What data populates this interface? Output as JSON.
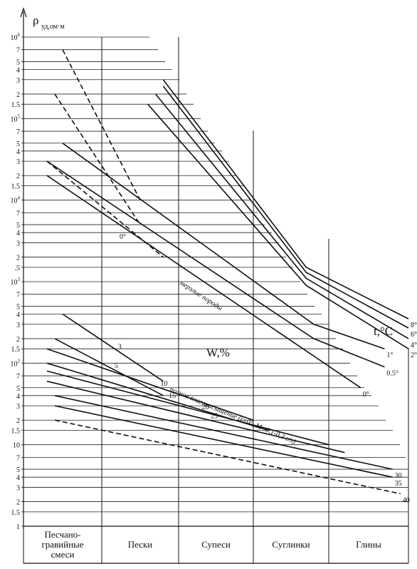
{
  "chart_data": {
    "type": "line",
    "y_scale": "log",
    "ylim": [
      1,
      1000000
    ],
    "ylabel": "ρ",
    "ylabel_sub": "уд,ом·м",
    "ytick_labels": [
      {
        "v": 1000000,
        "base": "10",
        "exp": "6"
      },
      {
        "v": 700000,
        "label": "7"
      },
      {
        "v": 500000,
        "label": "5"
      },
      {
        "v": 400000,
        "label": "4"
      },
      {
        "v": 300000,
        "label": "3"
      },
      {
        "v": 200000,
        "label": "2"
      },
      {
        "v": 150000,
        "label": "1.5"
      },
      {
        "v": 100000,
        "base": "10",
        "exp": "5"
      },
      {
        "v": 70000,
        "label": "7"
      },
      {
        "v": 50000,
        "label": "5"
      },
      {
        "v": 40000,
        "label": "4"
      },
      {
        "v": 30000,
        "label": "3"
      },
      {
        "v": 20000,
        "label": "2"
      },
      {
        "v": 15000,
        "label": "1.5"
      },
      {
        "v": 10000,
        "base": "10",
        "exp": "4"
      },
      {
        "v": 7000,
        "label": "7"
      },
      {
        "v": 5000,
        "label": "5"
      },
      {
        "v": 4000,
        "label": "4"
      },
      {
        "v": 3000,
        "label": "3"
      },
      {
        "v": 2000,
        "label": "2"
      },
      {
        "v": 1500,
        "label": ".5"
      },
      {
        "v": 1000,
        "base": "10",
        "exp": "3"
      },
      {
        "v": 700,
        "label": "7"
      },
      {
        "v": 500,
        "label": "5"
      },
      {
        "v": 400,
        "label": "4"
      },
      {
        "v": 300,
        "label": "3"
      },
      {
        "v": 200,
        "label": "2"
      },
      {
        "v": 150,
        "label": "1.5"
      },
      {
        "v": 100,
        "base": "10",
        "exp": "2"
      },
      {
        "v": 70,
        "label": "7"
      },
      {
        "v": 50,
        "label": "5"
      },
      {
        "v": 40,
        "label": "4"
      },
      {
        "v": 30,
        "label": "3"
      },
      {
        "v": 20,
        "label": "2"
      },
      {
        "v": 15,
        "label": "1.5"
      },
      {
        "v": 10,
        "label": "10"
      },
      {
        "v": 7,
        "label": "7"
      },
      {
        "v": 5,
        "label": "5"
      },
      {
        "v": 4,
        "label": "4"
      },
      {
        "v": 3,
        "label": "3"
      },
      {
        "v": 2,
        "label": "2"
      },
      {
        "v": 1.5,
        "label": "1.5"
      },
      {
        "v": 1,
        "label": "1"
      }
    ],
    "categories": [
      "Песчано-гравийные смеси",
      "Пески",
      "Супеси",
      "Суглинки",
      "Глины"
    ],
    "category_lines": [
      [
        "Песчано-",
        "гравийные",
        "смеси"
      ],
      [
        "Пески"
      ],
      [
        "Супеси"
      ],
      [
        "Суглинки"
      ],
      [
        "Глины"
      ]
    ],
    "x_unit_note": "x position = soil column index, 0..5 across the five soil groups",
    "series": [
      {
        "label": "8°",
        "dash": false,
        "points": [
          [
            1.8,
            300000
          ],
          [
            3.7,
            1500
          ],
          [
            5.0,
            350
          ]
        ]
      },
      {
        "label": "6°",
        "dash": false,
        "points": [
          [
            1.8,
            250000
          ],
          [
            3.7,
            1300
          ],
          [
            5.0,
            270
          ]
        ]
      },
      {
        "label": "4°",
        "dash": false,
        "points": [
          [
            1.7,
            200000
          ],
          [
            3.7,
            1100
          ],
          [
            5.0,
            200
          ]
        ]
      },
      {
        "label": "2°",
        "dash": false,
        "points": [
          [
            1.6,
            150000
          ],
          [
            3.7,
            900
          ],
          [
            5.0,
            150
          ]
        ]
      },
      {
        "label": "1°",
        "dash": false,
        "points": [
          [
            0.5,
            50000
          ],
          [
            3.8,
            300
          ],
          [
            4.7,
            150
          ]
        ]
      },
      {
        "label": "0.5°",
        "dash": false,
        "points": [
          [
            0.3,
            30000
          ],
          [
            3.8,
            200
          ],
          [
            4.7,
            90
          ]
        ]
      },
      {
        "label": "0°",
        "dash": false,
        "points": [
          [
            0.3,
            20000
          ],
          [
            4.4,
            50
          ]
        ]
      },
      {
        "label": "",
        "dash": true,
        "points": [
          [
            0.5,
            700000
          ],
          [
            1.5,
            10000
          ]
        ]
      },
      {
        "label": "",
        "dash": true,
        "points": [
          [
            0.4,
            200000
          ],
          [
            1.5,
            5000
          ]
        ]
      },
      {
        "label": "",
        "dash": true,
        "points": [
          [
            0.3,
            30000
          ],
          [
            1.8,
            2000
          ]
        ]
      },
      {
        "label": "3",
        "dash": false,
        "points": [
          [
            0.5,
            400
          ],
          [
            1.8,
            60
          ]
        ]
      },
      {
        "label": "5",
        "dash": false,
        "points": [
          [
            0.4,
            200
          ],
          [
            1.8,
            40
          ]
        ]
      },
      {
        "label": "10",
        "dash": false,
        "points": [
          [
            0.3,
            150
          ],
          [
            3.0,
            20
          ]
        ]
      },
      {
        "label": "15",
        "dash": false,
        "points": [
          [
            0.3,
            100
          ],
          [
            3.2,
            15
          ]
        ]
      },
      {
        "label": "20",
        "dash": false,
        "points": [
          [
            0.3,
            80
          ],
          [
            4.0,
            10
          ]
        ]
      },
      {
        "label": "25",
        "dash": false,
        "points": [
          [
            0.3,
            60
          ],
          [
            4.2,
            8
          ]
        ]
      },
      {
        "label": "30",
        "dash": false,
        "points": [
          [
            0.4,
            40
          ],
          [
            4.8,
            5
          ]
        ]
      },
      {
        "label": "35",
        "dash": false,
        "points": [
          [
            0.4,
            30
          ],
          [
            4.8,
            4
          ]
        ]
      },
      {
        "label": "40",
        "dash": true,
        "points": [
          [
            0.4,
            20
          ],
          [
            4.9,
            2.5
          ]
        ]
      }
    ],
    "annotations": {
      "permafrost": "мерзлые породы",
      "moisture": "W,%",
      "temperature": "t,°C",
      "saturation": "полное влагонасыщение (t>0°, M=0,1-0,3 г/л)",
      "zero_label": "0°"
    }
  }
}
